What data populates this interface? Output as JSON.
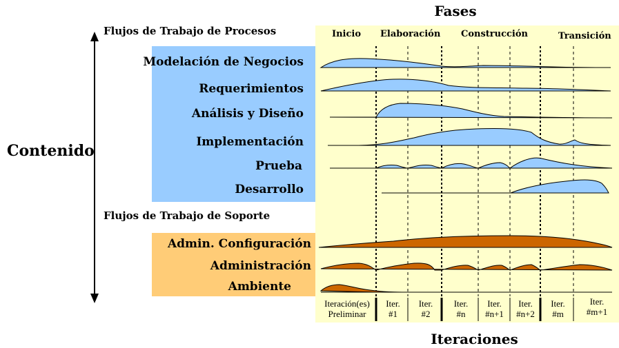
{
  "title_top": "Fases",
  "title_bottom": "Iteraciones",
  "left_label": "Contenido",
  "process_heading": "Flujos de Trabajo de Procesos",
  "support_heading": "Flujos de Trabajo de Soporte",
  "phases": [
    "Inicio",
    "Elaboración",
    "Construcción",
    "Transición"
  ],
  "process_workflows": [
    "Modelación de Negocios",
    "Requerimientos",
    "Análisis y Diseño",
    "Implementación",
    "Prueba",
    "Desarrollo"
  ],
  "support_workflows": [
    "Admin. Configuración",
    "Administración",
    "Ambiente"
  ],
  "iterations": [
    "Iteración(es)\nPreliminar",
    "Iter.\n#1",
    "Iter.\n#2",
    "Iter.\n#n",
    "Iter.\n#n+1",
    "Iter.\n#n+2",
    "Iter.\n#m",
    "Iter.\n#m+1"
  ],
  "colors": {
    "process_box": "#99ccff",
    "support_box": "#ffcc77",
    "phase_area": "#ffffcc",
    "process_curve": "#99ccff",
    "support_curve": "#cc6600"
  }
}
